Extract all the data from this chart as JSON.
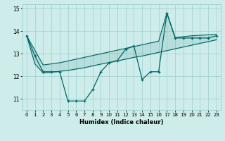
{
  "xlabel": "Humidex (Indice chaleur)",
  "bg_color": "#cdecea",
  "grid_color": "#9ecfcc",
  "line_color": "#006666",
  "xlim": [
    -0.5,
    23.5
  ],
  "ylim": [
    10.5,
    15.2
  ],
  "yticks": [
    11,
    12,
    13,
    14,
    15
  ],
  "xticks": [
    0,
    1,
    2,
    3,
    4,
    5,
    6,
    7,
    8,
    9,
    10,
    11,
    12,
    13,
    14,
    15,
    16,
    17,
    18,
    19,
    20,
    21,
    22,
    23
  ],
  "series_main": [
    13.8,
    12.9,
    12.2,
    12.2,
    12.2,
    10.9,
    10.9,
    10.9,
    11.4,
    12.2,
    12.6,
    12.7,
    13.2,
    13.35,
    11.85,
    12.2,
    12.2,
    14.8,
    13.7,
    13.7,
    13.7,
    13.7,
    13.7,
    13.8
  ],
  "series_upper": [
    13.8,
    13.15,
    12.5,
    12.55,
    12.6,
    12.68,
    12.76,
    12.84,
    12.92,
    13.0,
    13.08,
    13.16,
    13.24,
    13.32,
    13.4,
    13.48,
    13.56,
    14.82,
    13.72,
    13.76,
    13.8,
    13.82,
    13.84,
    13.87
  ],
  "series_lower": [
    13.8,
    12.55,
    12.15,
    12.18,
    12.22,
    12.26,
    12.32,
    12.38,
    12.46,
    12.54,
    12.61,
    12.68,
    12.76,
    12.84,
    12.9,
    12.98,
    13.06,
    13.14,
    13.22,
    13.3,
    13.38,
    13.46,
    13.54,
    13.62
  ]
}
